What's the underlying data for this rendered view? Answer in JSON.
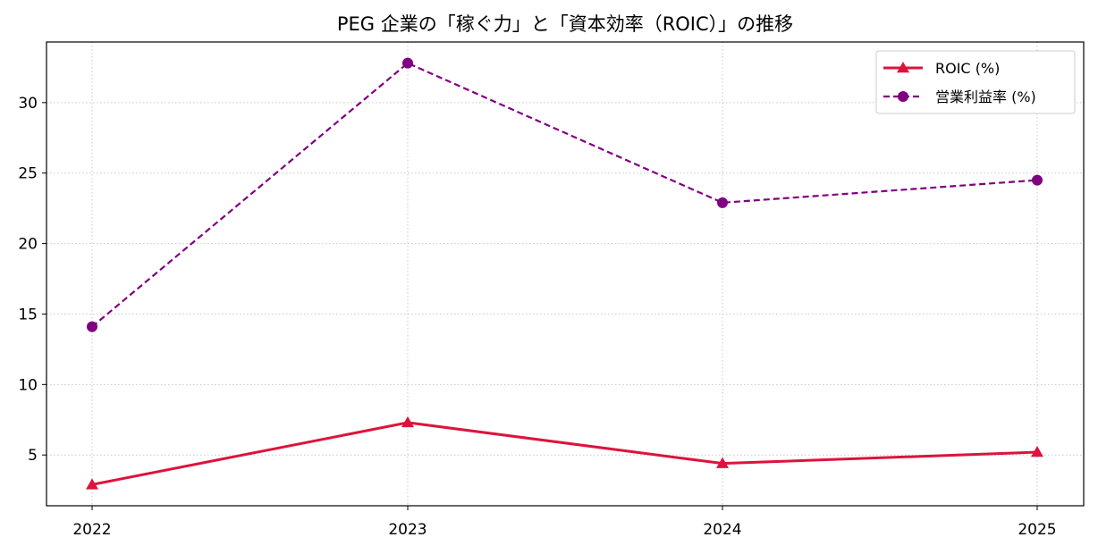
{
  "chart_data": {
    "type": "line",
    "title": "PEG 企業の「稼ぐ力」と「資本効率（ROIC）」の推移",
    "xlabel": "",
    "ylabel": "",
    "categories": [
      "2022",
      "2023",
      "2024",
      "2025"
    ],
    "x": [
      2022,
      2023,
      2024,
      2025
    ],
    "ylim": [
      1.4,
      34.3
    ],
    "yticks": [
      5,
      10,
      15,
      20,
      25,
      30
    ],
    "ytick_labels": [
      "5",
      "10",
      "15",
      "20",
      "25",
      "30"
    ],
    "grid": true,
    "legend_position": "top-right",
    "series": [
      {
        "name": "ROIC (%)",
        "values": [
          2.9,
          7.3,
          4.4,
          5.2
        ],
        "color": "#dc143c",
        "linestyle": "solid",
        "marker": "triangle"
      },
      {
        "name": "営業利益率 (%)",
        "values": [
          14.1,
          32.8,
          22.9,
          24.5
        ],
        "color": "#800080",
        "linestyle": "dashed",
        "marker": "circle"
      }
    ]
  }
}
